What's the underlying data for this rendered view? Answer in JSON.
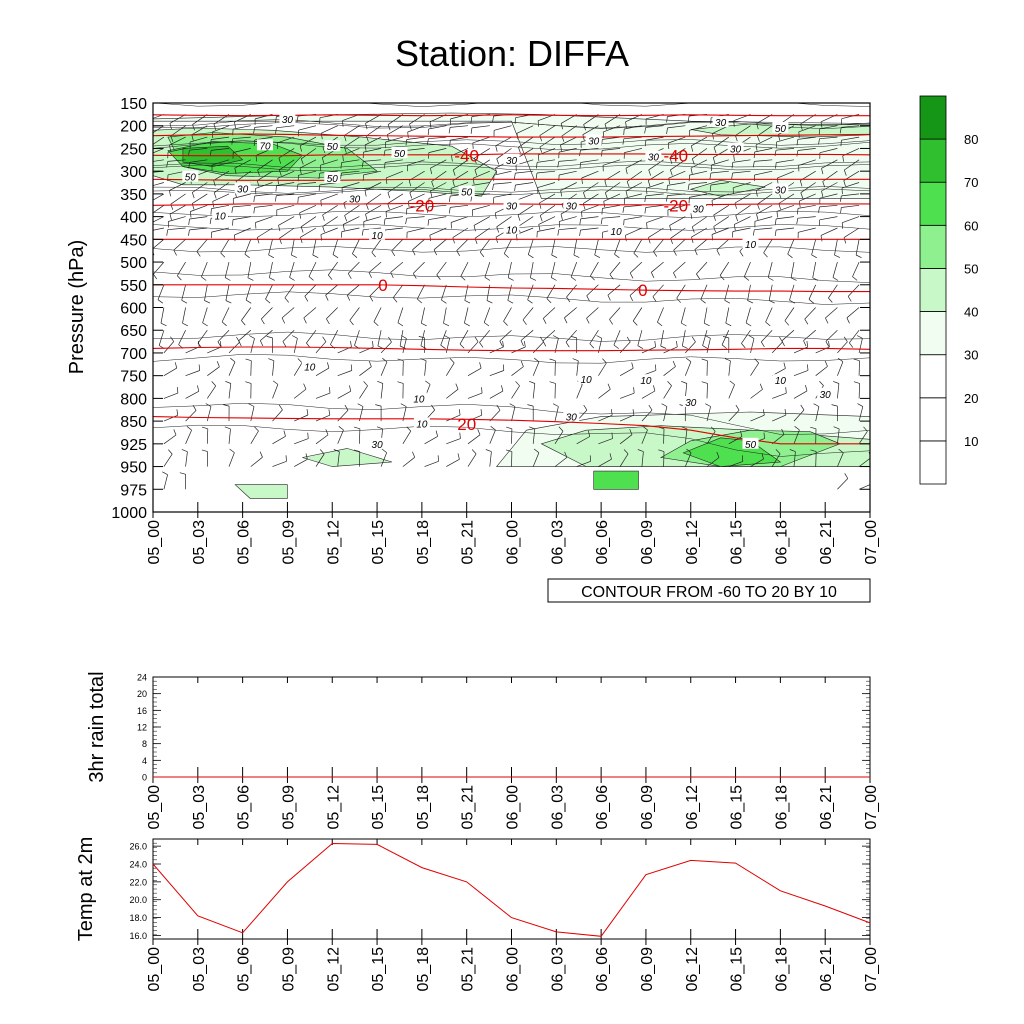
{
  "title": "Station: DIFFA",
  "colors": {
    "isotherm": "#e00000",
    "temp_line": "#e00000",
    "barb": "#222222",
    "rh_contour": "#222222",
    "frame": "#000000",
    "fill_levels": [
      "#ffffff",
      "#ffffff",
      "#ffffff",
      "#f0fdf0",
      "#c8f7c8",
      "#8ef08e",
      "#4fe04f",
      "#2fbf2f",
      "#169616"
    ]
  },
  "chart_data": [
    {
      "type": "contour",
      "name": "time-height cross section",
      "ylabel": "Pressure (hPa)",
      "ylim": [
        1000,
        150
      ],
      "yticks": [
        150,
        200,
        250,
        300,
        350,
        400,
        450,
        500,
        550,
        600,
        650,
        700,
        750,
        800,
        850,
        925,
        950,
        975,
        1000
      ],
      "x_hours": [
        0,
        3,
        6,
        9,
        12,
        15,
        18,
        21,
        24,
        27,
        30,
        33,
        36,
        39,
        42,
        45,
        48
      ],
      "xticks": [
        "05_00",
        "05_03",
        "05_06",
        "05_09",
        "05_12",
        "05_15",
        "05_18",
        "05_21",
        "06_00",
        "06_03",
        "06_06",
        "06_09",
        "06_12",
        "06_15",
        "06_18",
        "06_21",
        "07_00"
      ],
      "contour_info": "CONTOUR FROM -60 TO 20 BY 10",
      "isotherms": [
        {
          "level": -50,
          "p": [
            176,
            177,
            178,
            177,
            176,
            177,
            178,
            177,
            176,
            177,
            178,
            177,
            176,
            177,
            178,
            178,
            178
          ]
        },
        {
          "level": -45,
          "p": [
            222,
            220,
            218,
            219,
            221,
            222,
            223,
            224,
            225,
            225,
            225,
            224,
            223,
            222,
            221,
            220,
            219
          ]
        },
        {
          "level": -40,
          "p": [
            265,
            266,
            266,
            266,
            264,
            264,
            264,
            264,
            262,
            262,
            262,
            262,
            263,
            263,
            263,
            263,
            264
          ]
        },
        {
          "level": -30,
          "p": [
            318,
            319,
            320,
            320,
            320,
            319,
            318,
            318,
            318,
            318,
            318,
            318,
            318,
            318,
            318,
            318,
            318
          ]
        },
        {
          "level": -20,
          "p": [
            375,
            374,
            372,
            372,
            372,
            372,
            371,
            372,
            372,
            373,
            374,
            374,
            374,
            373,
            372,
            372,
            372
          ]
        },
        {
          "level": -10,
          "p": [
            450,
            450,
            450,
            450,
            450,
            450,
            450,
            450,
            450,
            450,
            450,
            450,
            450,
            450,
            450,
            450,
            450
          ]
        },
        {
          "level": 0,
          "p": [
            550,
            550,
            550,
            550,
            550,
            550,
            552,
            555,
            557,
            558,
            560,
            562,
            563,
            564,
            564,
            565,
            565
          ]
        },
        {
          "level": 10,
          "p": [
            690,
            688,
            687,
            687,
            688,
            690,
            692,
            694,
            695,
            695,
            695,
            694,
            693,
            692,
            690,
            690,
            692
          ]
        },
        {
          "level": 20,
          "p": [
            840,
            842,
            843,
            844,
            845,
            845,
            845,
            846,
            848,
            852,
            858,
            865,
            880,
            905,
            925,
            925,
            925
          ]
        }
      ],
      "isotherm_labels": [
        {
          "text": "-40",
          "hour": 21,
          "p": 265
        },
        {
          "text": "-40",
          "hour": 35,
          "p": 265
        },
        {
          "text": "-20",
          "hour": 18,
          "p": 375
        },
        {
          "text": "-20",
          "hour": 35,
          "p": 375
        },
        {
          "text": "0",
          "hour": 15.4,
          "p": 550
        },
        {
          "text": "0",
          "hour": 32.8,
          "p": 562
        },
        {
          "text": "20",
          "hour": 21,
          "p": 860
        }
      ],
      "rh_fill_regions": [
        {
          "level": 40,
          "t": [
            0,
            24,
            26,
            48,
            48,
            36,
            26,
            20,
            8,
            0
          ],
          "p": [
            190,
            190,
            360,
            360,
            195,
            190,
            175,
            172,
            178,
            185
          ]
        },
        {
          "level": 40,
          "t": [
            23,
            28,
            34,
            48,
            48,
            40,
            30,
            25
          ],
          "p": [
            950,
            950,
            950,
            950,
            840,
            830,
            840,
            880
          ]
        },
        {
          "level": 50,
          "t": [
            0,
            3,
            8,
            14,
            20,
            23,
            22,
            18,
            12,
            6,
            2,
            0
          ],
          "p": [
            210,
            205,
            210,
            225,
            245,
            300,
            355,
            345,
            335,
            330,
            330,
            310
          ]
        },
        {
          "level": 50,
          "t": [
            36,
            40,
            48,
            48,
            44,
            38
          ],
          "p": [
            208,
            196,
            198,
            220,
            225,
            220
          ]
        },
        {
          "level": 50,
          "t": [
            36,
            38,
            41,
            38
          ],
          "p": [
            340,
            320,
            335,
            355
          ]
        },
        {
          "level": 50,
          "t": [
            26,
            29,
            30,
            36,
            48,
            48,
            40,
            34,
            29
          ],
          "p": [
            925,
            950,
            950,
            950,
            950,
            910,
            880,
            865,
            880
          ]
        },
        {
          "level": 50,
          "t": [
            10,
            13,
            16,
            12
          ],
          "p": [
            940,
            930,
            945,
            950
          ]
        },
        {
          "level": 50,
          "t": [
            5.5,
            9,
            9,
            6.5
          ],
          "p": [
            970,
            970,
            985,
            985
          ]
        },
        {
          "level": 60,
          "t": [
            1,
            4,
            9,
            13,
            15,
            11,
            5,
            2
          ],
          "p": [
            225,
            215,
            225,
            250,
            300,
            315,
            310,
            290
          ]
        },
        {
          "level": 60,
          "t": [
            34,
            36,
            40,
            44,
            46,
            42,
            38
          ],
          "p": [
            940,
            915,
            880,
            885,
            925,
            950,
            950
          ]
        },
        {
          "level": 70,
          "t": [
            1,
            4,
            8,
            10,
            9,
            5,
            2
          ],
          "p": [
            255,
            235,
            240,
            265,
            300,
            305,
            290
          ]
        },
        {
          "level": 70,
          "t": [
            35.5,
            38,
            40,
            42,
            38
          ],
          "p": [
            935,
            905,
            915,
            945,
            950
          ]
        },
        {
          "level": 70,
          "t": [
            29.5,
            32.5,
            32.5,
            29.5
          ],
          "p": [
            955,
            955,
            975,
            975
          ]
        },
        {
          "level": 80,
          "t": [
            2,
            5,
            6,
            4,
            2
          ],
          "p": [
            250,
            245,
            275,
            290,
            280
          ]
        }
      ],
      "rh_labels": [
        {
          "text": "30",
          "hour": 9,
          "p": 185
        },
        {
          "text": "70",
          "hour": 7.5,
          "p": 243
        },
        {
          "text": "50",
          "hour": 12,
          "p": 245
        },
        {
          "text": "50",
          "hour": 16.5,
          "p": 260
        },
        {
          "text": "50",
          "hour": 2.5,
          "p": 312
        },
        {
          "text": "50",
          "hour": 12,
          "p": 315
        },
        {
          "text": "30",
          "hour": 6,
          "p": 338
        },
        {
          "text": "30",
          "hour": 13.5,
          "p": 360
        },
        {
          "text": "50",
          "hour": 21,
          "p": 345
        },
        {
          "text": "10",
          "hour": 4.5,
          "p": 398
        },
        {
          "text": "10",
          "hour": 15,
          "p": 440
        },
        {
          "text": "10",
          "hour": 24,
          "p": 428
        },
        {
          "text": "10",
          "hour": 31,
          "p": 432
        },
        {
          "text": "10",
          "hour": 40,
          "p": 460
        },
        {
          "text": "30",
          "hour": 24,
          "p": 375
        },
        {
          "text": "30",
          "hour": 28,
          "p": 375
        },
        {
          "text": "30",
          "hour": 36.5,
          "p": 382
        },
        {
          "text": "30",
          "hour": 42,
          "p": 340
        },
        {
          "text": "30",
          "hour": 29.5,
          "p": 232
        },
        {
          "text": "30",
          "hour": 24,
          "p": 275
        },
        {
          "text": "30",
          "hour": 38,
          "p": 192
        },
        {
          "text": "30",
          "hour": 39,
          "p": 250
        },
        {
          "text": "30",
          "hour": 33.5,
          "p": 268
        },
        {
          "text": "50",
          "hour": 42,
          "p": 205
        },
        {
          "text": "10",
          "hour": 10.5,
          "p": 730
        },
        {
          "text": "10",
          "hour": 17.8,
          "p": 800
        },
        {
          "text": "10",
          "hour": 18,
          "p": 858
        },
        {
          "text": "10",
          "hour": 29,
          "p": 757
        },
        {
          "text": "10",
          "hour": 33,
          "p": 760
        },
        {
          "text": "10",
          "hour": 42,
          "p": 760
        },
        {
          "text": "30",
          "hour": 28,
          "p": 840
        },
        {
          "text": "30",
          "hour": 36,
          "p": 808
        },
        {
          "text": "30",
          "hour": 45,
          "p": 790
        },
        {
          "text": "30",
          "hour": 15,
          "p": 925
        },
        {
          "text": "50",
          "hour": 40,
          "p": 925
        }
      ],
      "colorbar": {
        "labels": [
          "10",
          "20",
          "30",
          "40",
          "50",
          "60",
          "70",
          "80"
        ]
      }
    },
    {
      "type": "line",
      "name": "rain",
      "ylabel": "3hr rain total",
      "ylim": [
        0,
        24
      ],
      "yticks": [
        "0",
        "4",
        "8",
        "12",
        "16",
        "20",
        "24"
      ],
      "x_hours": [
        0,
        3,
        6,
        9,
        12,
        15,
        18,
        21,
        24,
        27,
        30,
        33,
        36,
        39,
        42,
        45,
        48
      ],
      "xticks": [
        "05_00",
        "05_03",
        "05_06",
        "05_09",
        "05_12",
        "05_15",
        "05_18",
        "05_21",
        "06_00",
        "06_03",
        "06_06",
        "06_09",
        "06_12",
        "06_15",
        "06_18",
        "06_21",
        "07_00"
      ],
      "values": [
        0,
        0,
        0,
        0,
        0,
        0,
        0,
        0,
        0,
        0,
        0,
        0,
        0,
        0,
        0,
        0,
        0
      ]
    },
    {
      "type": "line",
      "name": "temperature",
      "ylabel": "Temp at 2m",
      "ylim": [
        15.6,
        26.8
      ],
      "yticks": [
        "16.0",
        "18.0",
        "20.0",
        "22.0",
        "24.0",
        "26.0"
      ],
      "x_hours": [
        0,
        3,
        6,
        9,
        12,
        15,
        18,
        21,
        24,
        27,
        30,
        33,
        36,
        39,
        42,
        45,
        48
      ],
      "xticks": [
        "05_00",
        "05_03",
        "05_06",
        "05_09",
        "05_12",
        "05_15",
        "05_18",
        "05_21",
        "06_00",
        "06_03",
        "06_06",
        "06_09",
        "06_12",
        "06_15",
        "06_18",
        "06_21",
        "07_00"
      ],
      "values": [
        24.0,
        18.2,
        16.3,
        22.0,
        26.3,
        26.2,
        23.6,
        22.0,
        18.0,
        16.4,
        15.9,
        22.8,
        24.4,
        24.1,
        21.0,
        19.3,
        17.4
      ]
    }
  ]
}
